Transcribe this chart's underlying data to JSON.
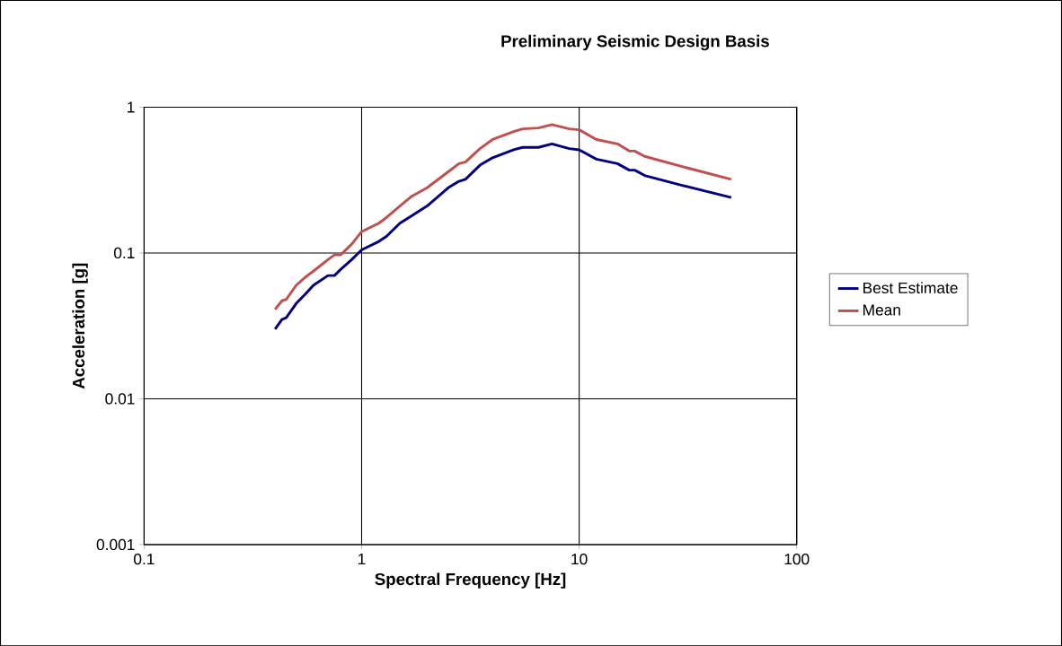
{
  "chart_data": {
    "type": "line",
    "title": "Preliminary Seismic Design Basis",
    "xlabel": "Spectral Frequency [Hz]",
    "ylabel": "Acceleration [g]",
    "log": "xy",
    "grid": true,
    "legend": "right",
    "xlim": [
      0.1,
      100
    ],
    "ylim": [
      0.001,
      1
    ],
    "xticks": [
      0.1,
      1,
      10,
      100
    ],
    "yticks": [
      0.001,
      0.01,
      0.1,
      1
    ],
    "x": [
      0.4,
      0.43,
      0.45,
      0.5,
      0.55,
      0.6,
      0.7,
      0.75,
      0.8,
      0.9,
      1,
      1.2,
      1.3,
      1.5,
      1.7,
      2,
      2.5,
      2.8,
      3,
      3.5,
      4,
      5,
      5.5,
      6.5,
      7.5,
      9,
      10,
      12,
      15,
      17,
      18,
      20,
      30,
      50
    ],
    "series": [
      {
        "name": "Best Estimate",
        "color": "#000080",
        "values": [
          0.03,
          0.035,
          0.036,
          0.045,
          0.052,
          0.06,
          0.07,
          0.07,
          0.077,
          0.09,
          0.105,
          0.12,
          0.13,
          0.16,
          0.18,
          0.21,
          0.28,
          0.31,
          0.32,
          0.4,
          0.45,
          0.51,
          0.53,
          0.53,
          0.56,
          0.52,
          0.51,
          0.44,
          0.41,
          0.37,
          0.37,
          0.34,
          0.29,
          0.24
        ]
      },
      {
        "name": "Mean",
        "color": "#c0504d",
        "values": [
          0.041,
          0.047,
          0.048,
          0.06,
          0.068,
          0.075,
          0.09,
          0.097,
          0.097,
          0.115,
          0.14,
          0.16,
          0.175,
          0.21,
          0.245,
          0.28,
          0.36,
          0.41,
          0.42,
          0.52,
          0.6,
          0.68,
          0.71,
          0.72,
          0.76,
          0.71,
          0.7,
          0.6,
          0.56,
          0.5,
          0.5,
          0.46,
          0.39,
          0.32
        ]
      }
    ]
  }
}
